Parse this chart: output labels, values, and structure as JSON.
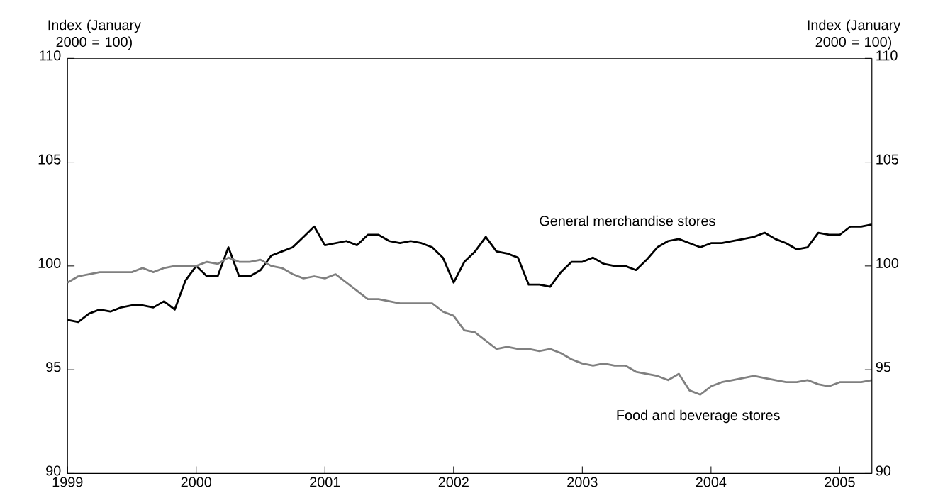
{
  "chart_data": {
    "type": "line",
    "ylabel": "Index (January 2000 = 100)",
    "y2label": "Index (January 2000 = 100)",
    "x": [
      "1999-01",
      "1999-02",
      "1999-03",
      "1999-04",
      "1999-05",
      "1999-06",
      "1999-07",
      "1999-08",
      "1999-09",
      "1999-10",
      "1999-11",
      "1999-12",
      "2000-01",
      "2000-02",
      "2000-03",
      "2000-04",
      "2000-05",
      "2000-06",
      "2000-07",
      "2000-08",
      "2000-09",
      "2000-10",
      "2000-11",
      "2000-12",
      "2001-01",
      "2001-02",
      "2001-03",
      "2001-04",
      "2001-05",
      "2001-06",
      "2001-07",
      "2001-08",
      "2001-09",
      "2001-10",
      "2001-11",
      "2001-12",
      "2002-01",
      "2002-02",
      "2002-03",
      "2002-04",
      "2002-05",
      "2002-06",
      "2002-07",
      "2002-08",
      "2002-09",
      "2002-10",
      "2002-11",
      "2002-12",
      "2003-01",
      "2003-02",
      "2003-03",
      "2003-04",
      "2003-05",
      "2003-06",
      "2003-07",
      "2003-08",
      "2003-09",
      "2003-10",
      "2003-11",
      "2003-12",
      "2004-01",
      "2004-02",
      "2004-03",
      "2004-04",
      "2004-05",
      "2004-06",
      "2004-07",
      "2004-08",
      "2004-09",
      "2004-10",
      "2004-11",
      "2004-12",
      "2005-01",
      "2005-02",
      "2005-03",
      "2005-04"
    ],
    "series": [
      {
        "name": "General merchandise stores",
        "color": "#000000",
        "values": [
          97.4,
          97.3,
          97.7,
          97.9,
          97.8,
          98.0,
          98.1,
          98.1,
          98.0,
          98.3,
          97.9,
          99.3,
          100.0,
          99.5,
          99.5,
          100.9,
          99.5,
          99.5,
          99.8,
          100.5,
          100.7,
          100.9,
          101.4,
          101.9,
          101.0,
          101.1,
          101.2,
          101.0,
          101.5,
          101.5,
          101.2,
          101.1,
          101.2,
          101.1,
          100.9,
          100.4,
          99.2,
          100.2,
          100.7,
          101.4,
          100.7,
          100.6,
          100.4,
          99.1,
          99.1,
          99.0,
          99.7,
          100.2,
          100.2,
          100.4,
          100.1,
          100.0,
          100.0,
          99.8,
          100.3,
          100.9,
          101.2,
          101.3,
          101.1,
          100.9,
          101.1,
          101.1,
          101.2,
          101.3,
          101.4,
          101.6,
          101.3,
          101.1,
          100.8,
          100.9,
          101.6,
          101.5,
          101.5,
          101.9,
          101.9,
          102.0
        ]
      },
      {
        "name": "Food and beverage stores",
        "color": "#808080",
        "values": [
          99.2,
          99.5,
          99.6,
          99.7,
          99.7,
          99.7,
          99.7,
          99.9,
          99.7,
          99.9,
          100.0,
          100.0,
          100.0,
          100.2,
          100.1,
          100.4,
          100.2,
          100.2,
          100.3,
          100.0,
          99.9,
          99.6,
          99.4,
          99.5,
          99.4,
          99.6,
          99.2,
          98.8,
          98.4,
          98.4,
          98.3,
          98.2,
          98.2,
          98.2,
          98.2,
          97.8,
          97.6,
          96.9,
          96.8,
          96.4,
          96.0,
          96.1,
          96.0,
          96.0,
          95.9,
          96.0,
          95.8,
          95.5,
          95.3,
          95.2,
          95.3,
          95.2,
          95.2,
          94.9,
          94.8,
          94.7,
          94.5,
          94.8,
          94.0,
          93.8,
          94.2,
          94.4,
          94.5,
          94.6,
          94.7,
          94.6,
          94.5,
          94.4,
          94.4,
          94.5,
          94.3,
          94.2,
          94.4,
          94.4,
          94.4,
          94.5
        ]
      }
    ],
    "xlim": [
      "1999-01",
      "2005-04"
    ],
    "xticks": [
      {
        "value": "1999-01",
        "label": "1999"
      },
      {
        "value": "2000-01",
        "label": "2000"
      },
      {
        "value": "2001-01",
        "label": "2001"
      },
      {
        "value": "2002-01",
        "label": "2002"
      },
      {
        "value": "2003-01",
        "label": "2003"
      },
      {
        "value": "2004-01",
        "label": "2004"
      },
      {
        "value": "2005-01",
        "label": "2005"
      }
    ],
    "ylim": [
      90,
      110
    ],
    "yticks": [
      90,
      95,
      100,
      105,
      110
    ],
    "y2lim": [
      90,
      110
    ],
    "y2ticks": [
      90,
      95,
      100,
      105,
      110
    ]
  }
}
